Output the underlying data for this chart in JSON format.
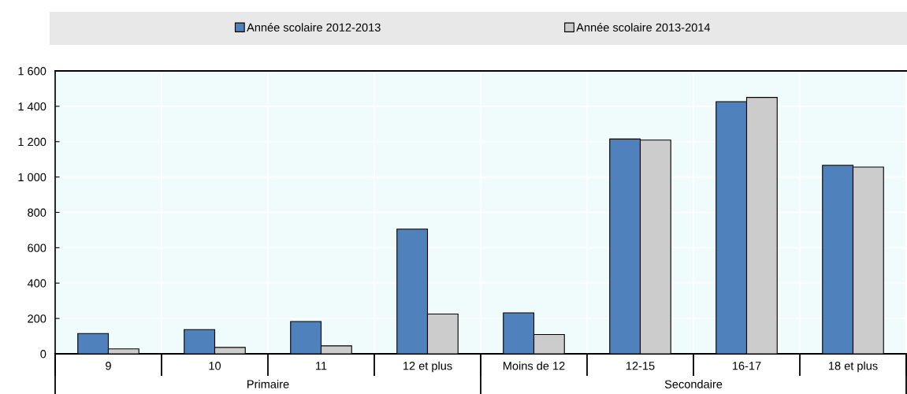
{
  "chart_data": {
    "type": "bar",
    "categories": [
      "9",
      "10",
      "11",
      "12 et plus",
      "Moins de 12",
      "12-15",
      "16-17",
      "18 et plus"
    ],
    "series": [
      {
        "name": "Année scolaire 2012-2013",
        "color": "#4f81bd",
        "values": [
          115,
          137,
          183,
          705,
          232,
          1215,
          1426,
          1066
        ]
      },
      {
        "name": "Année scolaire 2013-2014",
        "color": "#cccccc",
        "values": [
          28,
          36,
          45,
          225,
          109,
          1209,
          1450,
          1056
        ]
      }
    ],
    "ylim": [
      0,
      1600
    ],
    "yticks": [
      0,
      200,
      400,
      600,
      800,
      {
        "value": 1000,
        "label": "1 000"
      },
      {
        "value": 1200,
        "label": "1 200"
      },
      {
        "value": 1400,
        "label": "1 400"
      },
      {
        "value": 1600,
        "label": "1 600"
      }
    ],
    "grid": true,
    "legend": "top",
    "annotations": [
      "Primaire",
      "Secondaire"
    ]
  }
}
